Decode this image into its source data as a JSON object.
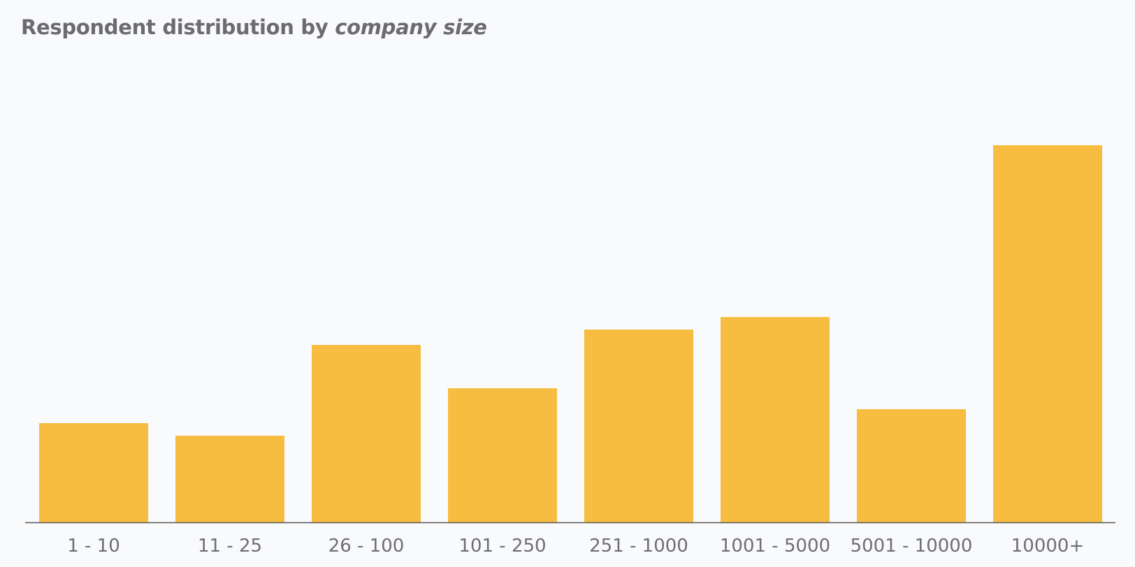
{
  "chart_data": {
    "type": "bar",
    "title": "Respondent distribution by",
    "title_emphasis": "company size",
    "categories": [
      "1 - 10",
      "11 - 25",
      "26 - 100",
      "101 - 250",
      "251 - 1000",
      "1001 - 5000",
      "5001 - 10000",
      "10000+"
    ],
    "values": [
      142,
      124,
      254,
      192,
      276,
      294,
      162,
      540
    ],
    "ylim": [
      0,
      740
    ],
    "grid": false,
    "legend": "none",
    "bar_color": "#f6bd41",
    "axis_color": "#555555"
  }
}
